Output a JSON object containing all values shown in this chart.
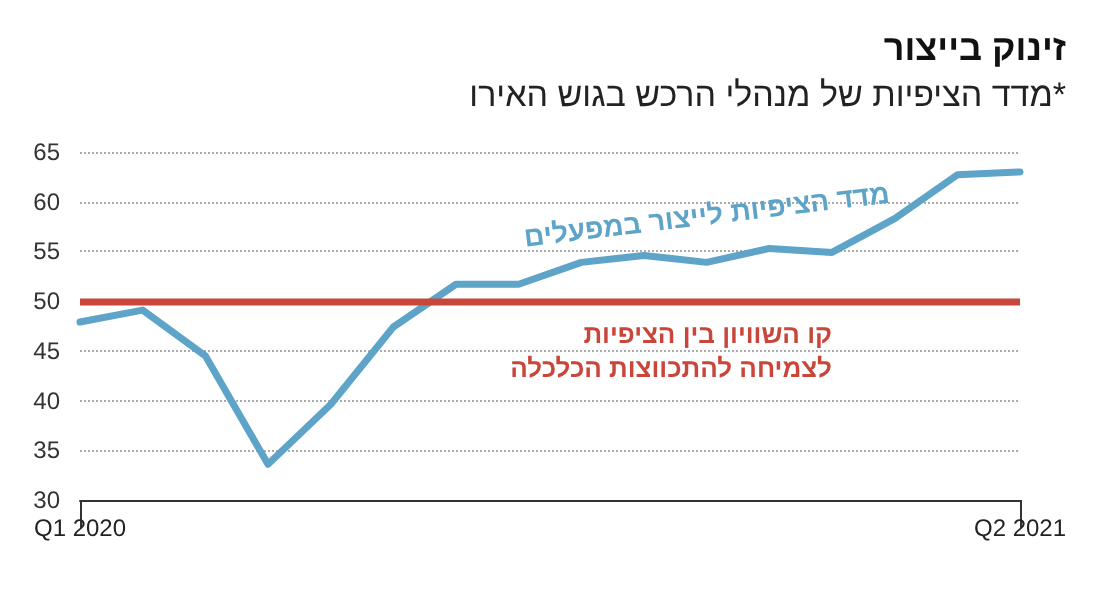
{
  "chart_data": {
    "type": "line",
    "title": "זינוק בייצור",
    "subtitle": "מדד הציפיות של מנהלי הרכש בגוש האירו*",
    "categories": [
      "Q1 2020",
      null,
      null,
      null,
      null,
      null,
      null,
      null,
      null,
      null,
      null,
      null,
      null,
      null,
      null,
      "Q2 2021"
    ],
    "series": [
      {
        "name": "מדד הציפיות לייצור במפעלים",
        "color": "#5ea3c8",
        "values": [
          47.9,
          49.1,
          44.5,
          33.6,
          39.6,
          47.4,
          51.7,
          51.7,
          53.9,
          54.6,
          53.9,
          55.3,
          54.9,
          58.3,
          62.7,
          63.0
        ]
      }
    ],
    "ylim": [
      30,
      65
    ],
    "yticks": [
      30,
      35,
      40,
      45,
      50,
      55,
      60,
      65
    ],
    "grid": "y",
    "legend": false,
    "marker": "none",
    "line_style": "solid",
    "ref_lines": [
      {
        "axis": "y",
        "value": 50,
        "label": "קו השוויון בין הציפיות לצמיחה להתכווצות הכלכלה",
        "color": "#c9463b"
      }
    ]
  }
}
